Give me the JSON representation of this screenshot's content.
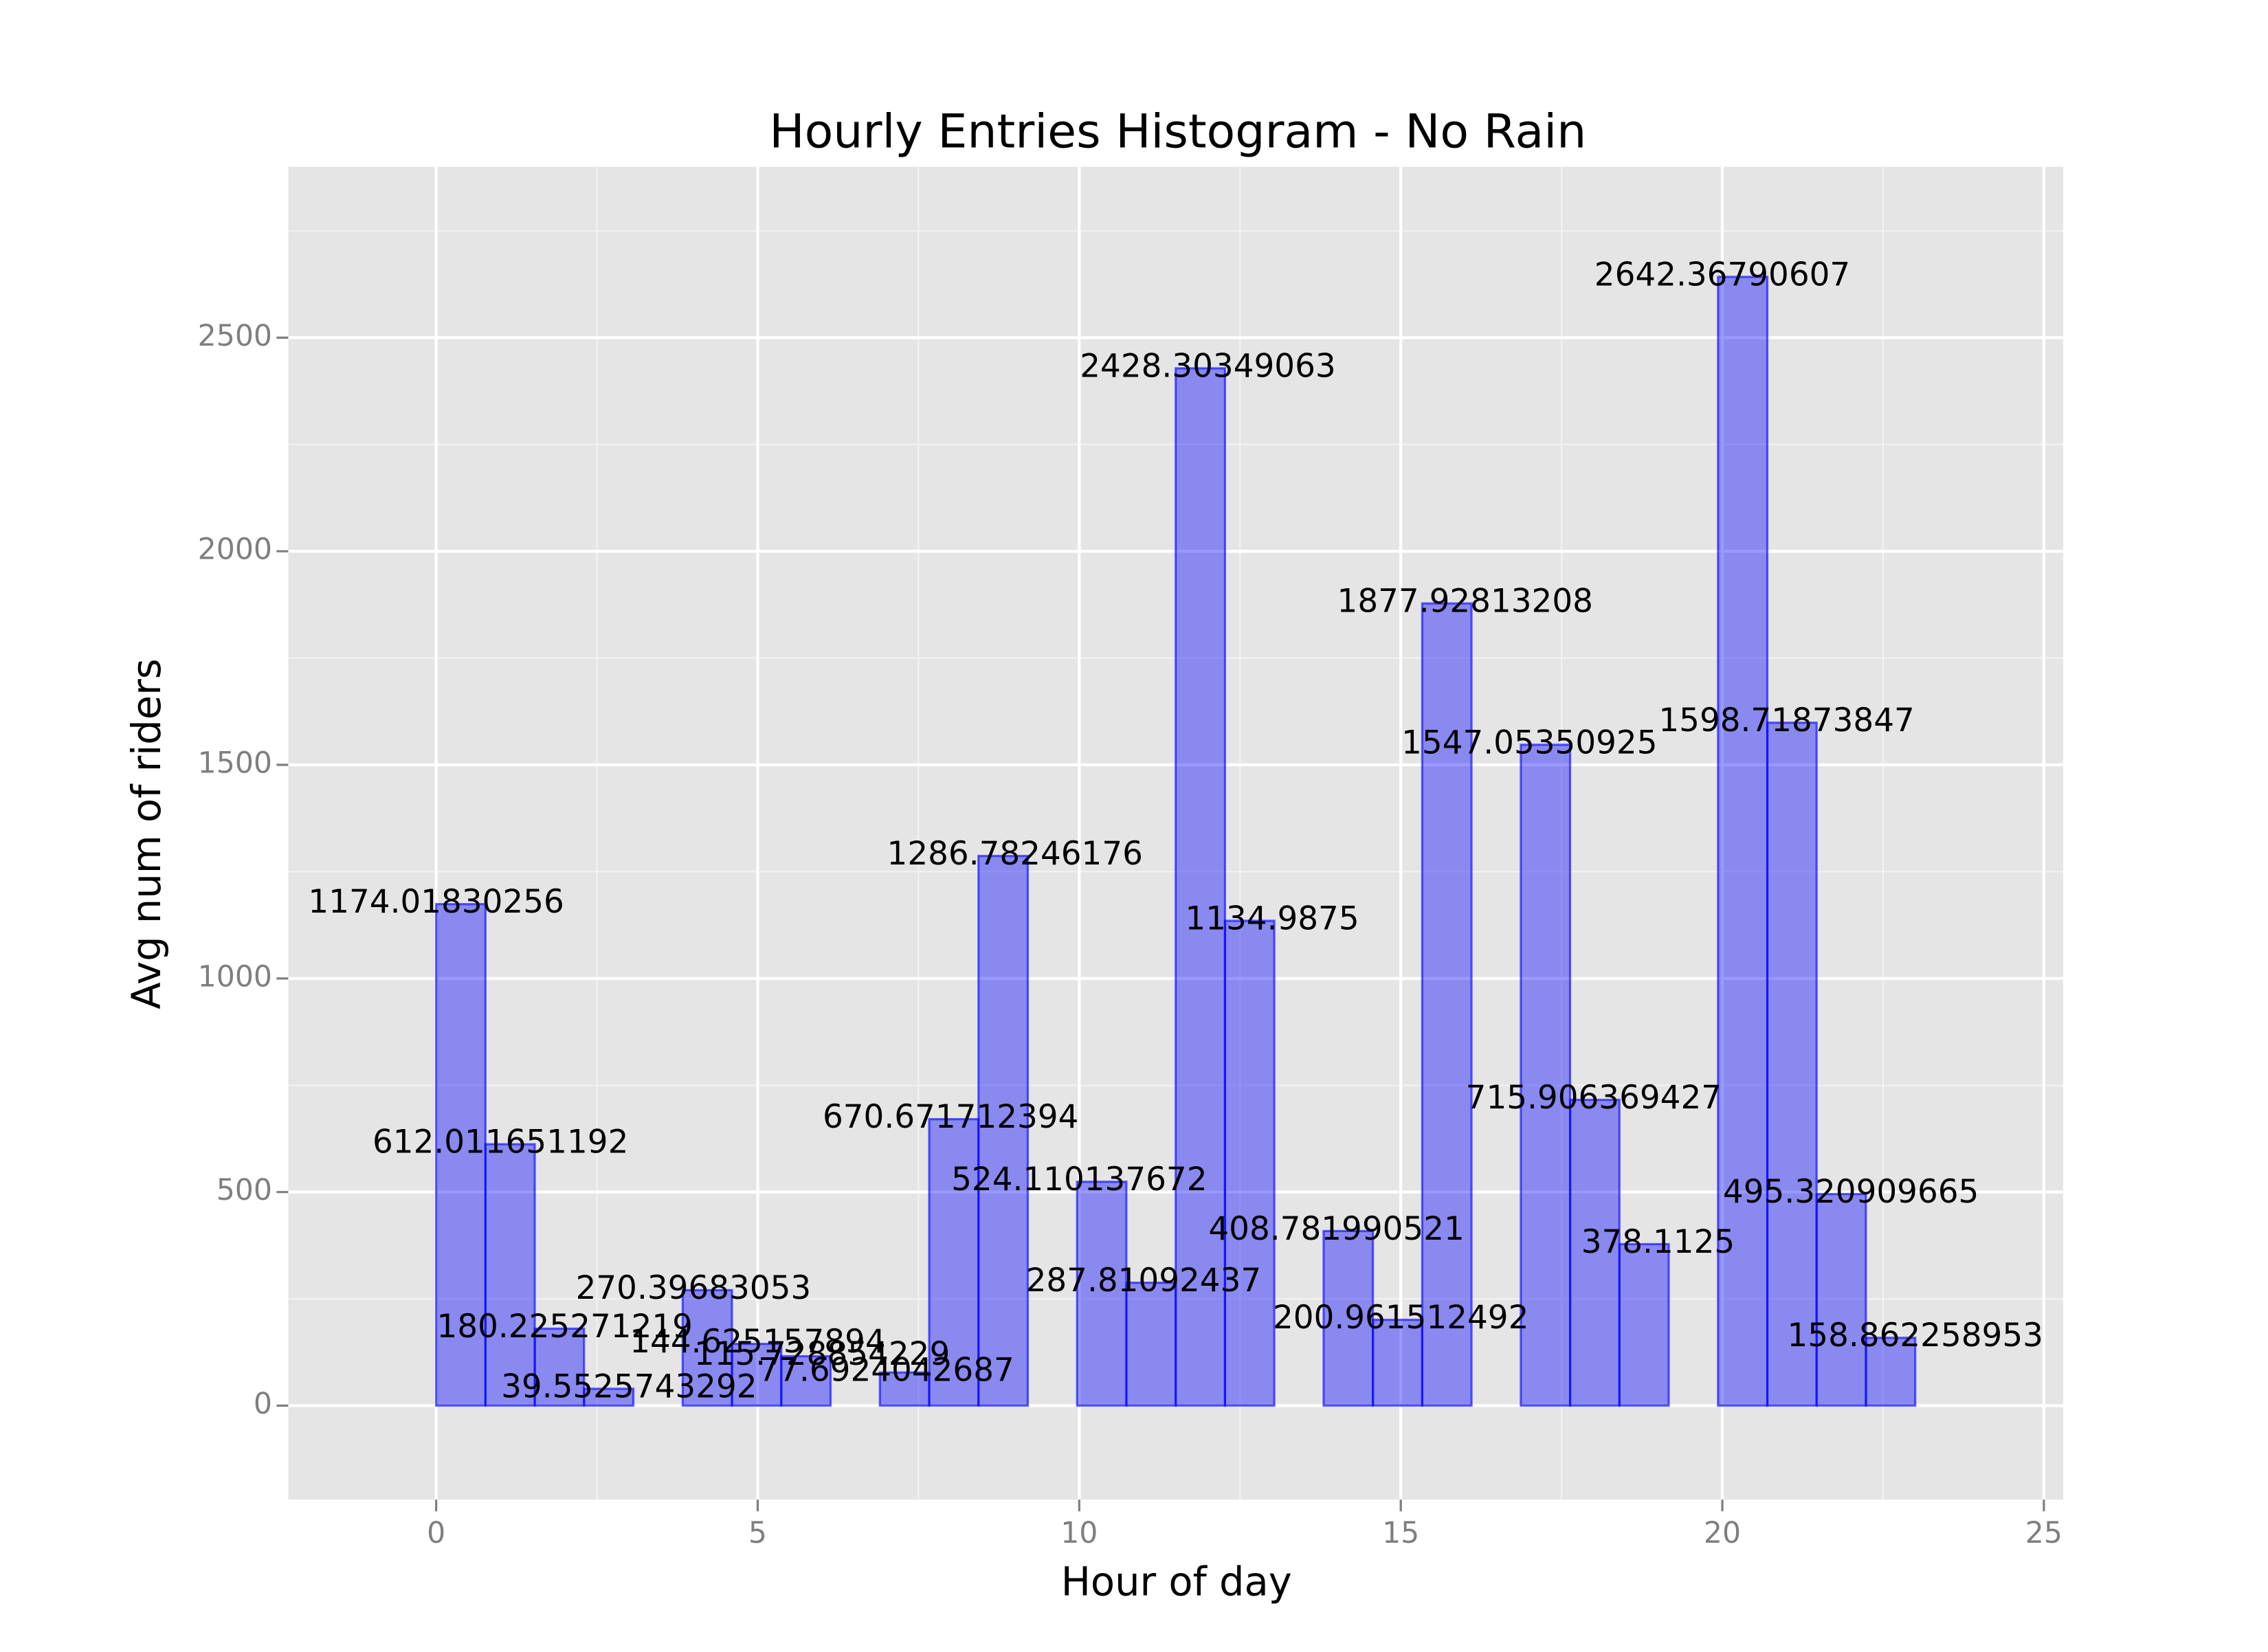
{
  "chart_data": {
    "type": "histogram",
    "title": "Hourly Entries Histogram - No Rain",
    "x_label": "Hour of day",
    "y_label": "Avg num of riders",
    "bins": [
      0,
      0.766667,
      1.533333,
      2.3,
      3.066667,
      3.833333,
      4.6,
      5.366667,
      6.133333,
      6.9,
      7.666667,
      8.433333,
      9.2,
      9.966667,
      10.733333,
      11.5,
      12.266667,
      13.033333,
      13.8,
      14.566667,
      15.333333,
      16.1,
      16.866667,
      17.633333,
      18.4,
      19.166667,
      19.933333,
      20.7,
      21.466667,
      22.233333,
      23
    ],
    "values": [
      1174.01830256,
      612.011651192,
      180.225271219,
      39.5525743292,
      0,
      270.39683053,
      144.625157894,
      115.728854229,
      0,
      77.6924042687,
      670.671712394,
      1286.78246176,
      0,
      524.110137672,
      287.81092437,
      2428.30349063,
      1134.9875,
      0,
      408.781990521,
      200.961512492,
      1877.92813208,
      0,
      1547.05350925,
      715.906369427,
      378.1125,
      0,
      2642.36790607,
      1598.71873847,
      495.320909665,
      158.862258953
    ],
    "color": "#0000ff",
    "labels": {
      "x": [
        0,
        1,
        2,
        3,
        4,
        5,
        6,
        7,
        8,
        9,
        10,
        11,
        12,
        13,
        14,
        15,
        16,
        17,
        18,
        19,
        20,
        21,
        22,
        23
      ],
      "y": [
        1174.01830256,
        612.011651192,
        180.225271219,
        39.5525743292,
        270.39683053,
        144.625157894,
        115.728854229,
        77.6924042687,
        670.671712394,
        1286.78246176,
        524.110137672,
        287.81092437,
        2428.30349063,
        1134.9875,
        408.781990521,
        200.961512492,
        1877.92813208,
        1547.05350925,
        715.906369427,
        378.1125,
        2642.36790607,
        1598.71873847,
        495.320909665,
        158.862258953
      ]
    },
    "xlim": [
      -2.3,
      25.3
    ],
    "xticks": [
      0,
      5,
      10,
      15,
      20,
      25
    ],
    "ylim": [
      -220,
      2900
    ],
    "yticks": [
      0,
      500,
      1000,
      1500,
      2000,
      2500
    ],
    "grid": true
  }
}
